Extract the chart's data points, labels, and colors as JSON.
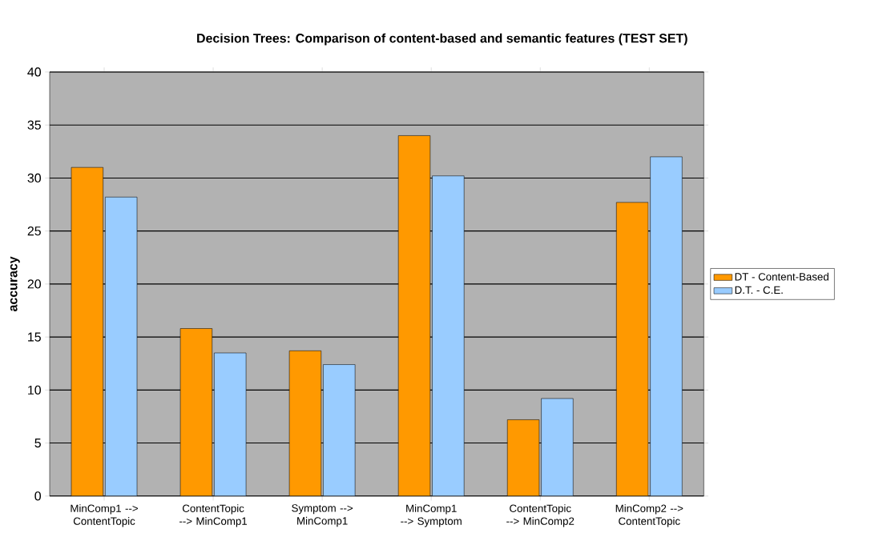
{
  "chart_data": {
    "type": "bar",
    "title": "Decision Trees: Comparison of content-based and semantic features (TEST SET)",
    "ylabel": "accuracy",
    "categories": [
      "MinComp1 --> ContentTopic",
      "ContentTopic --> MinComp1",
      "Symptom --> MinComp1",
      "MinComp1 --> Symptom",
      "ContentTopic --> MinComp2",
      "MinComp2 --> ContentTopic"
    ],
    "series": [
      {
        "name": "DT - Content-Based",
        "color": "#ff9900",
        "values": [
          31,
          15.8,
          13.7,
          34,
          7.2,
          27.7
        ]
      },
      {
        "name": "D.T. - C.E.",
        "color": "#99ccff",
        "values": [
          28.2,
          13.5,
          12.4,
          30.2,
          9.2,
          32
        ]
      }
    ],
    "ylim": [
      0,
      40
    ],
    "yticks": [
      0,
      5,
      10,
      15,
      20,
      25,
      30,
      35,
      40
    ],
    "grid": "y",
    "legend": "right"
  }
}
